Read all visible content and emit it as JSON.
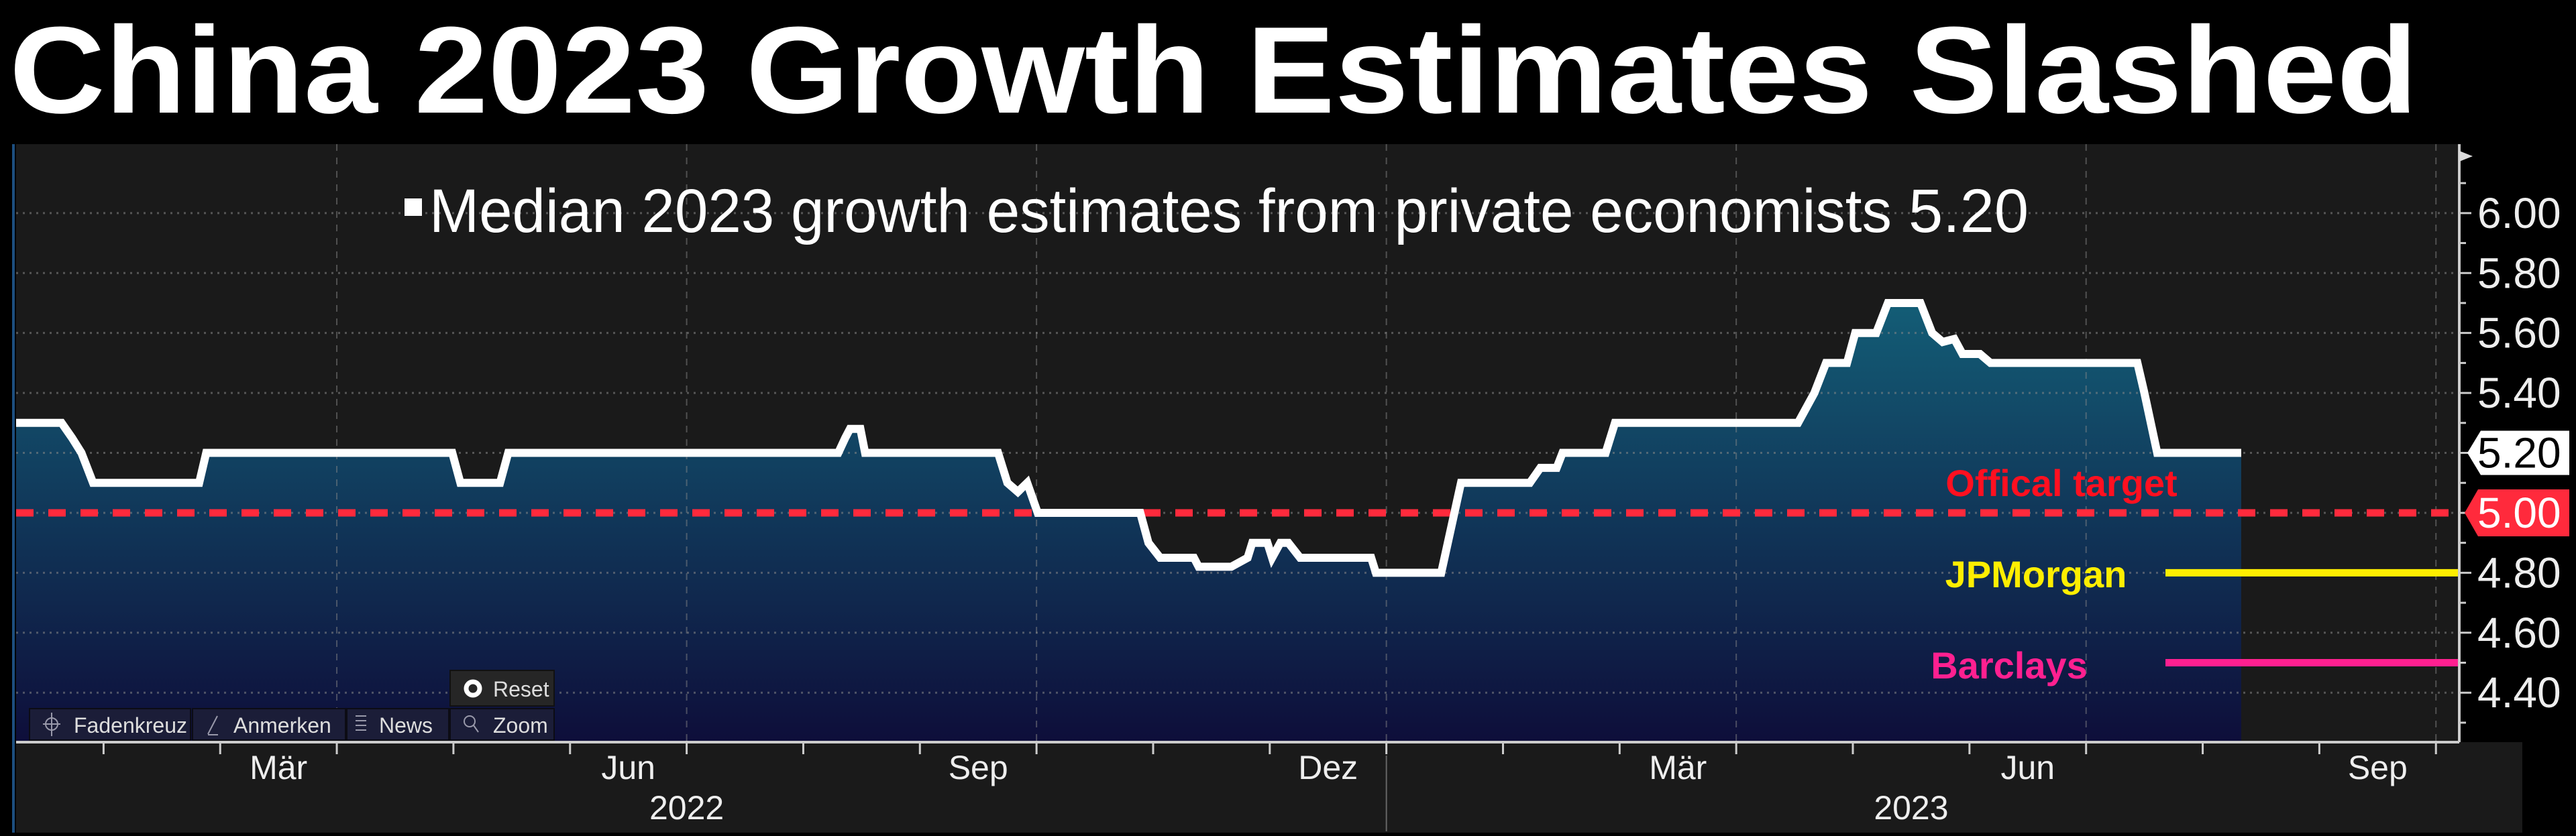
{
  "header": {
    "title": "China 2023 Growth Estimates Slashed"
  },
  "toolbar": {
    "reset": "Reset",
    "crosshair": "Fadenkreuz",
    "annotate": "Anmerken",
    "news": "News",
    "zoom": "Zoom"
  },
  "colors": {
    "line": "#ffffff",
    "target": "#ff2a3c",
    "jpmorgan": "#ffee00",
    "barclays": "#ff2090",
    "fill_top": "#135d76",
    "fill_bottom": "#0e0e3a"
  },
  "chart_data": {
    "type": "line",
    "title": "China 2023 Growth Estimates Slashed",
    "xlabel": "",
    "ylabel": "",
    "x_unit": "months since 2022-01-01",
    "xlim": [
      0.25,
      21.2
    ],
    "ylim": [
      4.235,
      6.23
    ],
    "grid": true,
    "legend": {
      "marker": "▪",
      "label": "Median 2023 growth estimates from private economists",
      "value": "5.20",
      "placement": "top-center"
    },
    "series": [
      {
        "name": "Median 2023 growth estimates from private economists",
        "last_value": "5.20",
        "points": [
          [
            0.25,
            5.3
          ],
          [
            0.64,
            5.3
          ],
          [
            0.73,
            5.25
          ],
          [
            0.81,
            5.2
          ],
          [
            0.91,
            5.1
          ],
          [
            1.82,
            5.1
          ],
          [
            1.88,
            5.2
          ],
          [
            3.99,
            5.2
          ],
          [
            4.06,
            5.1
          ],
          [
            4.4,
            5.1
          ],
          [
            4.47,
            5.2
          ],
          [
            7.3,
            5.2
          ],
          [
            7.36,
            5.25
          ],
          [
            7.4,
            5.28
          ],
          [
            7.49,
            5.28
          ],
          [
            7.53,
            5.2
          ],
          [
            8.67,
            5.2
          ],
          [
            8.75,
            5.1
          ],
          [
            8.84,
            5.07
          ],
          [
            8.92,
            5.1
          ],
          [
            9.01,
            5.0
          ],
          [
            9.89,
            5.0
          ],
          [
            9.96,
            4.9
          ],
          [
            10.06,
            4.85
          ],
          [
            10.35,
            4.85
          ],
          [
            10.39,
            4.82
          ],
          [
            10.67,
            4.82
          ],
          [
            10.81,
            4.85
          ],
          [
            10.85,
            4.9
          ],
          [
            10.98,
            4.9
          ],
          [
            11.02,
            4.85
          ],
          [
            11.09,
            4.9
          ],
          [
            11.16,
            4.9
          ],
          [
            11.26,
            4.85
          ],
          [
            11.87,
            4.85
          ],
          [
            11.91,
            4.8
          ],
          [
            12.47,
            4.8
          ],
          [
            12.64,
            5.1
          ],
          [
            13.23,
            5.1
          ],
          [
            13.32,
            5.15
          ],
          [
            13.46,
            5.15
          ],
          [
            13.51,
            5.2
          ],
          [
            13.88,
            5.2
          ],
          [
            13.96,
            5.3
          ],
          [
            15.53,
            5.3
          ],
          [
            15.67,
            5.4
          ],
          [
            15.77,
            5.5
          ],
          [
            15.95,
            5.5
          ],
          [
            16.02,
            5.6
          ],
          [
            16.2,
            5.6
          ],
          [
            16.3,
            5.7
          ],
          [
            16.58,
            5.7
          ],
          [
            16.68,
            5.6
          ],
          [
            16.77,
            5.57
          ],
          [
            16.87,
            5.58
          ],
          [
            16.94,
            5.53
          ],
          [
            17.09,
            5.53
          ],
          [
            17.18,
            5.5
          ],
          [
            18.44,
            5.5
          ],
          [
            18.5,
            5.4
          ],
          [
            18.61,
            5.2
          ],
          [
            19.33,
            5.2
          ]
        ]
      }
    ],
    "reference_lines": [
      {
        "label": "Offical target",
        "value": 5.0,
        "style": "dashed",
        "axis_label": "5.00"
      },
      {
        "label": "JPMorgan",
        "value": 4.8
      },
      {
        "label": "Barclays",
        "value": 4.5
      }
    ],
    "last_value_label": "5.20",
    "y_ticks": [
      "6.00",
      "5.80",
      "5.60",
      "5.40",
      "5.20",
      "5.00",
      "4.80",
      "4.60",
      "4.40"
    ],
    "x_ticks": [
      {
        "label": "Mär",
        "m": 2.5
      },
      {
        "label": "Jun",
        "m": 5.5
      },
      {
        "label": "Sep",
        "m": 8.5
      },
      {
        "label": "Dez",
        "m": 11.5
      },
      {
        "label": "Mär",
        "m": 14.5
      },
      {
        "label": "Jun",
        "m": 17.5
      },
      {
        "label": "Sep",
        "m": 20.5
      }
    ],
    "years": [
      {
        "label": "2022",
        "m": 6.0
      },
      {
        "label": "2023",
        "m": 16.5
      }
    ]
  }
}
